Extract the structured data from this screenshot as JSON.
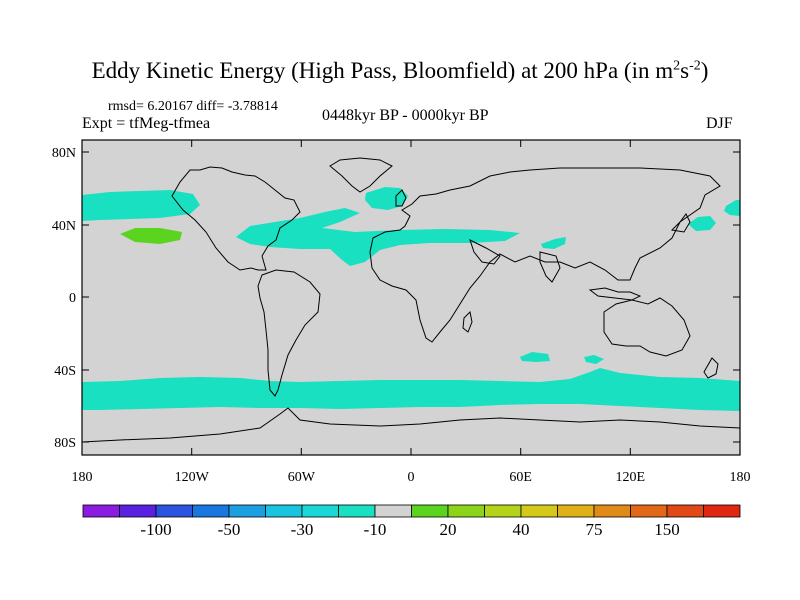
{
  "title": {
    "main": "Eddy Kinetic Energy (High Pass, Bloomfield) at 200 hPa (in m",
    "sup1": "2",
    "mid": "s",
    "sup2": "-2",
    "close": ")"
  },
  "stats": {
    "text": "rmsd= 6.20167 diff= -3.78814"
  },
  "expt": {
    "text": "Expt = tfMeg-tfmea"
  },
  "period": {
    "text": "0448kyr BP - 0000kyr BP"
  },
  "season": {
    "text": "DJF"
  },
  "map": {
    "lat_labels": [
      "80N",
      "40N",
      "0",
      "40S",
      "80S"
    ],
    "lon_labels": [
      "180",
      "120W",
      "60W",
      "0",
      "60E",
      "120E",
      "180"
    ],
    "colors": {
      "background": "#d3d3d3",
      "anomaly_neg10": "#18e0c0",
      "anomaly_pos20": "#5bd420",
      "coastline": "#000000"
    },
    "regions": [
      {
        "name": "southern-ocean-band",
        "class": "-10"
      },
      {
        "name": "north-atlantic-jet",
        "class": "-10"
      },
      {
        "name": "north-pacific-jet",
        "class": "-10"
      },
      {
        "name": "central-pacific-spot",
        "class": "20"
      }
    ]
  },
  "colorbar": {
    "colors": [
      "#8a1de0",
      "#5a22e0",
      "#2a54e0",
      "#1878e0",
      "#1aa0e0",
      "#18c4e0",
      "#1ad8d8",
      "#18e0c0",
      "#d3d3d3",
      "#5bd420",
      "#8cd41a",
      "#b4d41a",
      "#d4c81a",
      "#e0b018",
      "#e08a18",
      "#e06818",
      "#e04818",
      "#e02810"
    ],
    "labels": [
      "-100",
      "-50",
      "-30",
      "-10",
      "20",
      "40",
      "75",
      "150"
    ]
  }
}
